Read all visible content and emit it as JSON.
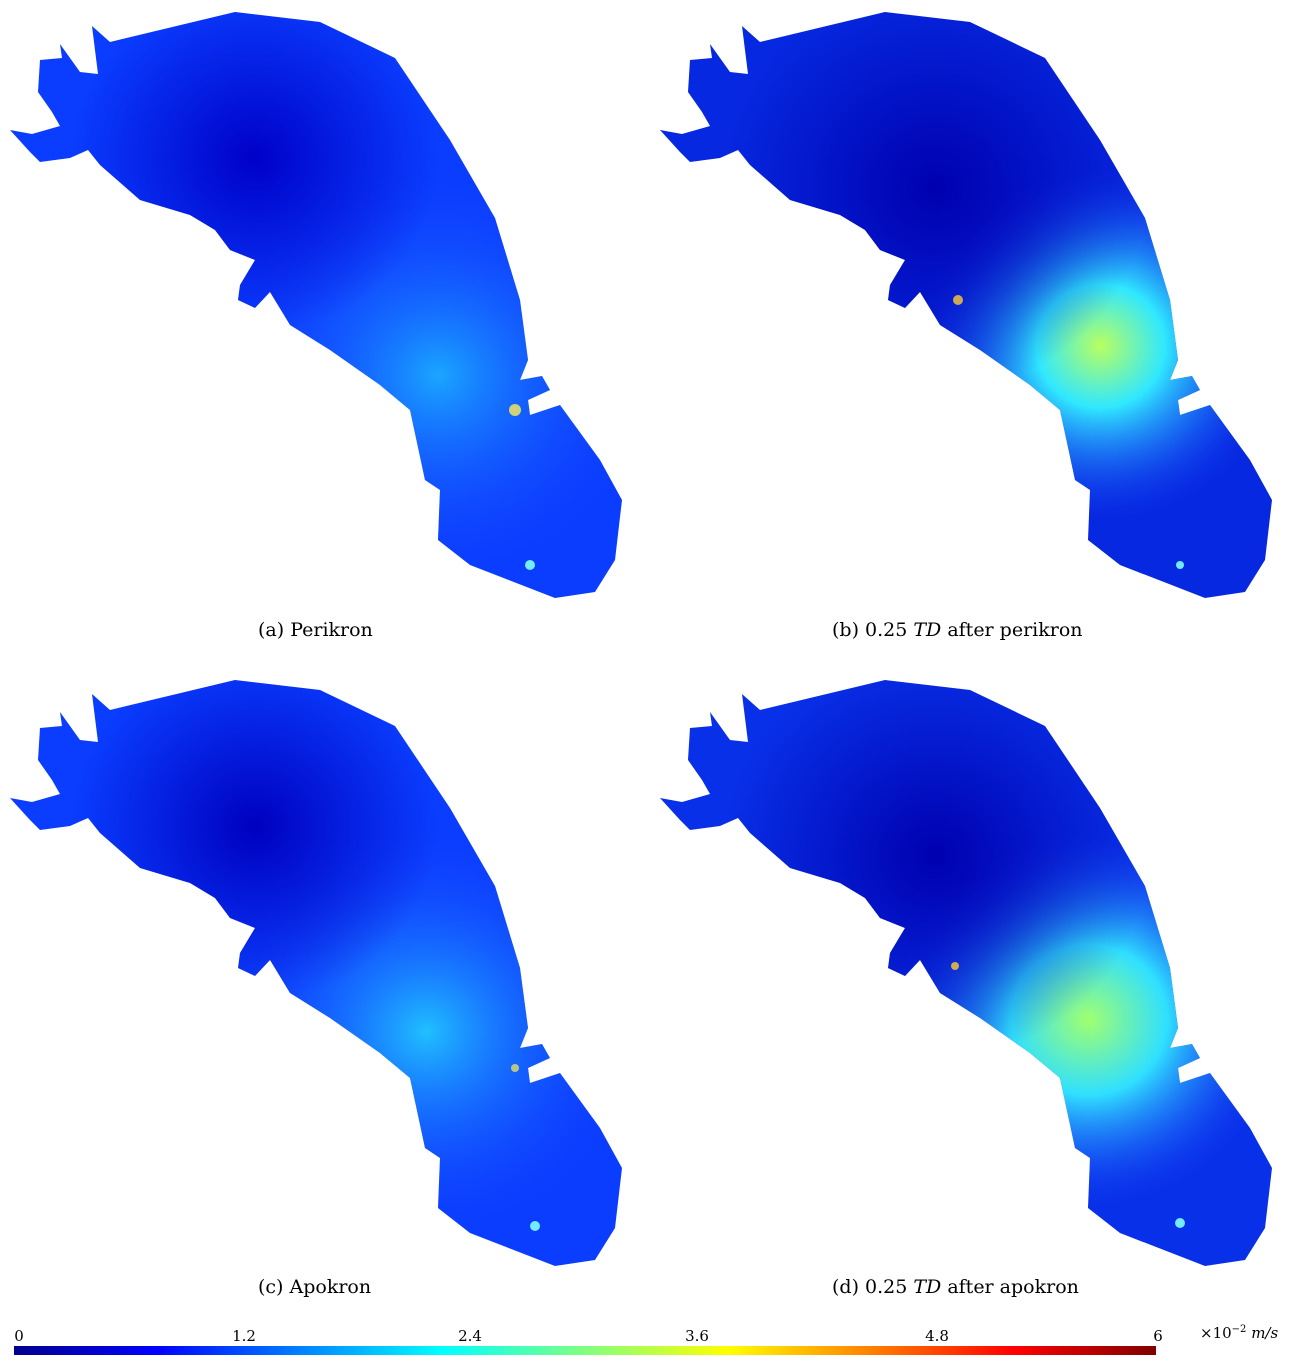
{
  "panels": [
    {
      "id": "a",
      "caption_prefix": "(a) Perikron",
      "caption_math": "",
      "caption_suffix": ""
    },
    {
      "id": "b",
      "caption_prefix": "(b) 0.25 ",
      "caption_math": "TD",
      "caption_suffix": " after perikron"
    },
    {
      "id": "c",
      "caption_prefix": "(c) Apokron",
      "caption_math": "",
      "caption_suffix": ""
    },
    {
      "id": "d",
      "caption_prefix": "(d) 0.25 ",
      "caption_math": "TD",
      "caption_suffix": " after apokron"
    }
  ],
  "colorbar": {
    "ticks": [
      "0",
      "1.2",
      "2.4",
      "3.6",
      "4.8",
      "6"
    ],
    "unit_prefix": "×10",
    "unit_exp": "−2",
    "unit": "m/s",
    "colors": {
      "min": "#00008f",
      "low": "#0000ff",
      "mid": "#00ffff",
      "high": "#ffff00",
      "max": "#800000"
    }
  }
}
